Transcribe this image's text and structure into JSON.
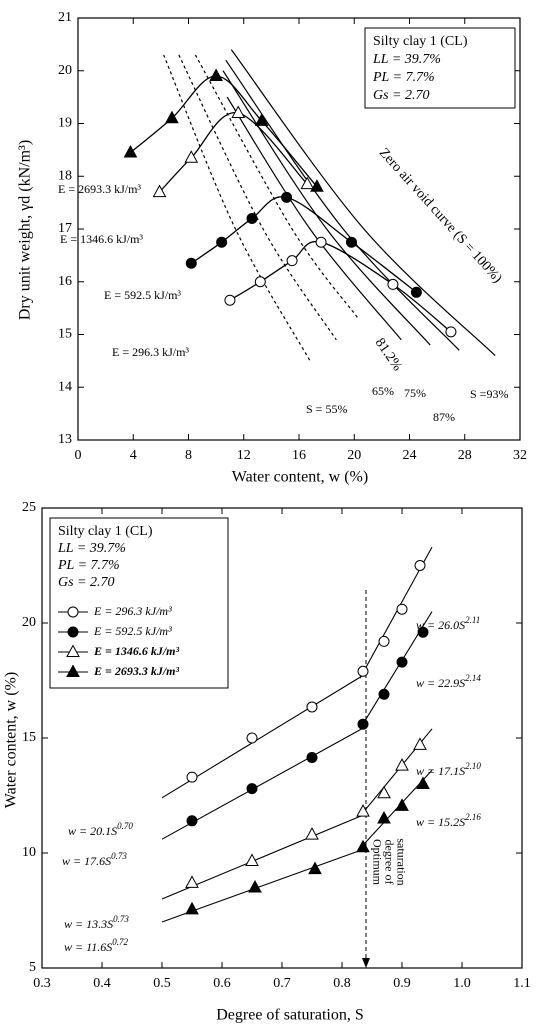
{
  "chart_data": [
    {
      "type": "line",
      "xlabel": "Water content, w (%)",
      "ylabel": "Dry unit weight, γd (kN/m³)",
      "xlim": [
        0,
        32
      ],
      "xticks": [
        0,
        4,
        8,
        12,
        16,
        20,
        24,
        28,
        32
      ],
      "ylim": [
        13,
        21
      ],
      "yticks": [
        13,
        14,
        15,
        16,
        17,
        18,
        19,
        20,
        21
      ],
      "annotation": [
        "Silty clay 1 (CL)",
        "LL = 39.7%",
        "PL = 7.7%",
        "Gs = 2.70"
      ],
      "series": [
        {
          "name": "E = 296.3 kJ/m³",
          "marker": "circle-open",
          "color": "#000000",
          "x": [
            11.0,
            13.2,
            15.5,
            17.6,
            22.8,
            27.0
          ],
          "values": [
            15.65,
            16.0,
            16.4,
            16.75,
            15.95,
            15.05
          ]
        },
        {
          "name": "E = 592.5 kJ/m³",
          "marker": "circle-filled",
          "color": "#000000",
          "x": [
            8.2,
            10.4,
            12.6,
            15.1,
            19.8,
            24.5
          ],
          "values": [
            16.35,
            16.75,
            17.2,
            17.6,
            16.75,
            15.8
          ]
        },
        {
          "name": "E = 1346.6 kJ/m³",
          "marker": "triangle-open",
          "color": "#000000",
          "x": [
            5.9,
            8.2,
            11.6,
            16.6
          ],
          "values": [
            17.7,
            18.35,
            19.2,
            17.85
          ]
        },
        {
          "name": "E = 2693.3 kJ/m³",
          "marker": "triangle-filled",
          "color": "#000000",
          "x": [
            3.8,
            6.8,
            10.0,
            13.3,
            17.3
          ],
          "values": [
            18.45,
            19.1,
            19.9,
            19.05,
            17.8
          ]
        }
      ],
      "saturation_lines": [
        {
          "name": "S = 55%",
          "dashed": true,
          "x": [
            6.2,
            11.4,
            16.8
          ],
          "values": [
            20.3,
            17,
            14.5
          ]
        },
        {
          "name": "65%",
          "dashed": true,
          "x": [
            7.3,
            13.4,
            18.7
          ],
          "values": [
            20.3,
            17,
            14.9
          ]
        },
        {
          "name": "75%",
          "dashed": true,
          "x": [
            8.5,
            15.5,
            20.3
          ],
          "values": [
            20.3,
            17,
            15.3
          ]
        },
        {
          "name": "81.2%",
          "dashed": false,
          "x": [
            10.8,
            16.8,
            23.4
          ],
          "values": [
            19.5,
            17,
            14.9
          ]
        },
        {
          "name": "87%",
          "dashed": false,
          "x": [
            10.5,
            18.0,
            25.5
          ],
          "values": [
            20.0,
            17,
            14.8
          ]
        },
        {
          "name": "S =93%",
          "dashed": false,
          "x": [
            10.7,
            19.2,
            27.6
          ],
          "values": [
            20.2,
            17,
            14.7
          ]
        },
        {
          "name": "Zero air void curve (S = 100%)",
          "dashed": false,
          "x": [
            11.1,
            20.7,
            30.2
          ],
          "values": [
            20.4,
            17,
            14.6
          ]
        }
      ]
    },
    {
      "type": "line",
      "xlabel": "Degree of saturation, S",
      "ylabel": "Water content, w (%)",
      "xlim": [
        0.3,
        1.1
      ],
      "xticks": [
        0.3,
        0.4,
        0.5,
        0.6,
        0.7,
        0.8,
        0.9,
        {
          "value": 1,
          "label": "1.0"
        },
        1.1
      ],
      "ylim": [
        5,
        25
      ],
      "yticks": [
        5,
        10,
        15,
        20,
        25
      ],
      "annotation": [
        "Silty clay 1 (CL)",
        "LL = 39.7%",
        "PL = 7.7%",
        "Gs = 2.70"
      ],
      "series": [
        {
          "name": "E = 296.3 kJ/m³",
          "marker": "circle-open",
          "color": "#000000",
          "x": [
            0.55,
            0.65,
            0.75,
            0.835,
            0.87,
            0.9,
            0.93
          ],
          "values": [
            13.3,
            15.0,
            16.35,
            17.9,
            19.2,
            20.6,
            22.5
          ]
        },
        {
          "name": "E = 592.5 kJ/m³",
          "marker": "circle-filled",
          "color": "#000000",
          "x": [
            0.55,
            0.65,
            0.75,
            0.835,
            0.87,
            0.9,
            0.935
          ],
          "values": [
            11.4,
            12.8,
            14.15,
            15.6,
            16.9,
            18.3,
            19.6
          ]
        },
        {
          "name": "E = 1346.6 kJ/m³",
          "marker": "triangle-open",
          "color": "#000000",
          "x": [
            0.55,
            0.65,
            0.75,
            0.835,
            0.87,
            0.9,
            0.93
          ],
          "values": [
            8.7,
            9.65,
            10.8,
            11.8,
            12.6,
            13.8,
            14.7
          ]
        },
        {
          "name": "E = 2693.3 kJ/m³",
          "marker": "triangle-filled",
          "color": "#000000",
          "x": [
            0.55,
            0.655,
            0.755,
            0.835,
            0.87,
            0.9,
            0.935
          ],
          "values": [
            7.55,
            8.5,
            9.3,
            10.25,
            11.5,
            12.05,
            13.0
          ]
        }
      ],
      "fit_lines": [
        {
          "text": "w = 20.1S",
          "exponent": "0.70",
          "x": [
            0.5,
            0.84
          ],
          "values": [
            12.4,
            17.8
          ]
        },
        {
          "text": "w = 17.6S",
          "exponent": "0.73",
          "x": [
            0.5,
            0.84
          ],
          "values": [
            10.6,
            15.5
          ]
        },
        {
          "text": "w = 13.3S",
          "exponent": "0.73",
          "x": [
            0.5,
            0.84
          ],
          "values": [
            8.0,
            11.7
          ]
        },
        {
          "text": "w = 11.6S",
          "exponent": "0.72",
          "x": [
            0.5,
            0.84
          ],
          "values": [
            7.0,
            10.2
          ]
        },
        {
          "text": "w = 26.0S",
          "exponent": "2.11",
          "x": [
            0.83,
            0.95
          ],
          "values": [
            17.6,
            23.3
          ]
        },
        {
          "text": "w = 22.9S",
          "exponent": "2.14",
          "x": [
            0.83,
            0.95
          ],
          "values": [
            15.4,
            20.5
          ]
        },
        {
          "text": "w = 17.1S",
          "exponent": "2.10",
          "x": [
            0.83,
            0.95
          ],
          "values": [
            11.6,
            15.4
          ]
        },
        {
          "text": "w = 15.2S",
          "exponent": "2.16",
          "x": [
            0.83,
            0.95
          ],
          "values": [
            10.2,
            13.6
          ]
        }
      ],
      "optimum": {
        "x": 0.84,
        "lines": [
          "Optimum",
          "degree of",
          "saturation"
        ]
      }
    }
  ]
}
